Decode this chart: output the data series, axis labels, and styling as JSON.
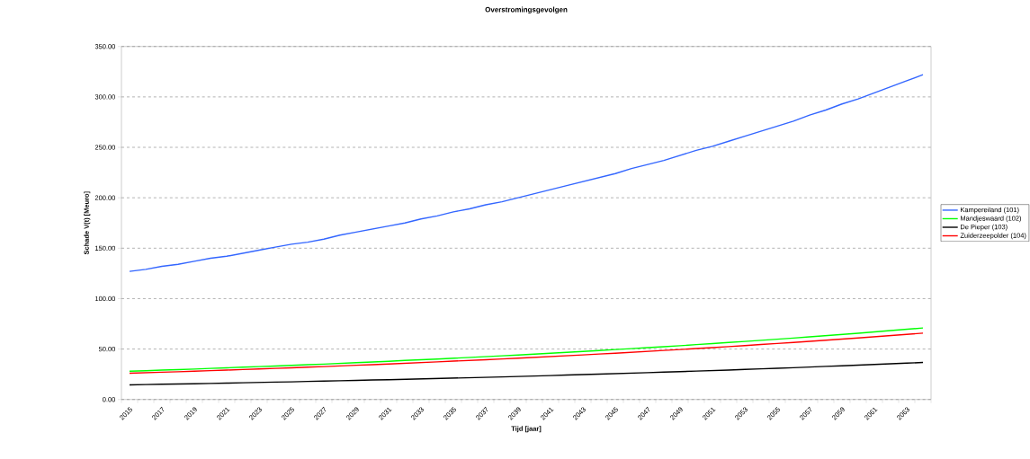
{
  "chart_data": {
    "type": "line",
    "title": "Overstromingsgevolgen",
    "xlabel": "Tijd [jaar]",
    "ylabel": "Schade V(t) [Meuro]",
    "categories": [
      "2015",
      null,
      "2017",
      null,
      "2019",
      null,
      "2021",
      null,
      "2023",
      null,
      "2025",
      null,
      "2027",
      null,
      "2029",
      null,
      "2031",
      null,
      "2033",
      null,
      "2035",
      null,
      "2037",
      null,
      "2039",
      null,
      "2041",
      null,
      "2043",
      null,
      "2045",
      null,
      "2047",
      null,
      "2049",
      null,
      "2051",
      null,
      "2053",
      null,
      "2055",
      null,
      "2057",
      null,
      "2059",
      null,
      "2061",
      null,
      "2063",
      null
    ],
    "series": [
      {
        "name": "Kampereiland (101)",
        "color": "#3366ff",
        "values": [
          127,
          129,
          132,
          134,
          137,
          140,
          142,
          145,
          148,
          151,
          154,
          156,
          159,
          163,
          166,
          169,
          172,
          175,
          179,
          182,
          186,
          189,
          193,
          196,
          200,
          204,
          208,
          212,
          216,
          220,
          224,
          229,
          233,
          237,
          242,
          247,
          251,
          256,
          261,
          266,
          271,
          276,
          282,
          287,
          293,
          298,
          304,
          310,
          316,
          322
        ]
      },
      {
        "name": "Mandjeswaard (102)",
        "color": "#00ff00",
        "values": [
          28.0,
          28.5,
          29.1,
          29.6,
          30.2,
          30.8,
          31.4,
          32.0,
          32.6,
          33.2,
          33.8,
          34.5,
          35.1,
          35.8,
          36.5,
          37.2,
          37.9,
          38.7,
          39.4,
          40.1,
          40.9,
          41.7,
          42.5,
          43.3,
          44.1,
          45.0,
          45.8,
          46.7,
          47.6,
          48.5,
          49.5,
          50.4,
          51.4,
          52.3,
          53.3,
          54.4,
          55.4,
          56.5,
          57.5,
          58.7,
          59.8,
          60.9,
          62.1,
          63.3,
          64.5,
          65.7,
          67.0,
          68.3,
          69.6,
          70.9
        ]
      },
      {
        "name": "De Pieper (103)",
        "color": "#000000",
        "values": [
          14.5,
          14.8,
          15.1,
          15.3,
          15.6,
          15.9,
          16.2,
          16.6,
          16.9,
          17.2,
          17.5,
          17.9,
          18.2,
          18.6,
          18.9,
          19.3,
          19.6,
          20.0,
          20.4,
          20.8,
          21.2,
          21.6,
          22.0,
          22.4,
          22.8,
          23.3,
          23.7,
          24.2,
          24.7,
          25.1,
          25.6,
          26.1,
          26.6,
          27.1,
          27.6,
          28.2,
          28.7,
          29.2,
          29.8,
          30.4,
          31.0,
          31.5,
          32.2,
          32.8,
          33.4,
          34.0,
          34.7,
          35.4,
          36.0,
          36.7
        ]
      },
      {
        "name": "Zuiderzeepolder (104)",
        "color": "#ff0000",
        "values": [
          26.0,
          26.5,
          27.0,
          27.5,
          28.0,
          28.6,
          29.1,
          29.7,
          30.3,
          30.8,
          31.4,
          32.0,
          32.6,
          33.3,
          33.9,
          34.5,
          35.2,
          35.9,
          36.6,
          37.3,
          38.0,
          38.7,
          39.4,
          40.2,
          41.0,
          41.8,
          42.6,
          43.4,
          44.2,
          45.1,
          45.9,
          46.8,
          47.7,
          48.6,
          49.5,
          50.5,
          51.4,
          52.4,
          53.4,
          54.5,
          55.5,
          56.6,
          57.6,
          58.8,
          59.9,
          61.0,
          62.2,
          63.4,
          64.6,
          65.8
        ]
      }
    ],
    "ylim": [
      0,
      350
    ],
    "yticks": [
      {
        "value": 0,
        "label": "0.00"
      },
      {
        "value": 50,
        "label": "50.00"
      },
      {
        "value": 100,
        "label": "100.00"
      },
      {
        "value": 150,
        "label": "150.00"
      },
      {
        "value": 200,
        "label": "200.00"
      },
      {
        "value": 250,
        "label": "250.00"
      },
      {
        "value": 300,
        "label": "300.00"
      },
      {
        "value": 350,
        "label": "350.00"
      }
    ],
    "grid": "y",
    "legend": "right",
    "marker": "none",
    "line_style": "solid"
  }
}
